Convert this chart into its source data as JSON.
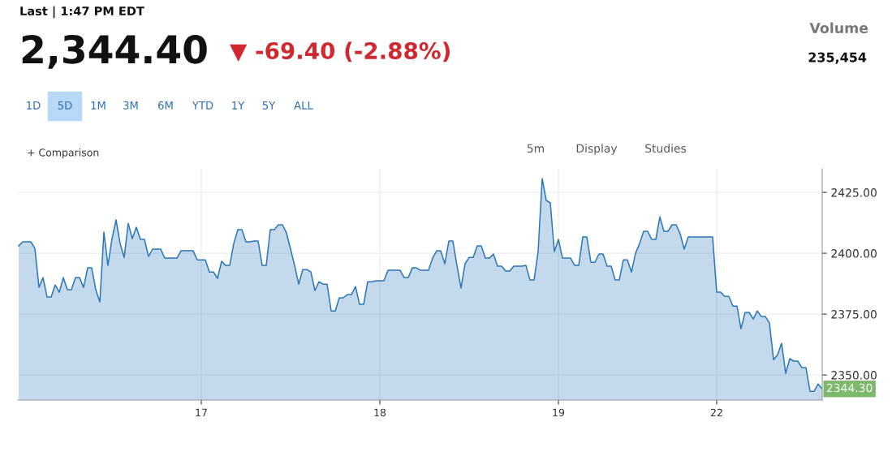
{
  "chart_data": {
    "type": "area",
    "title": "2,344.40",
    "subtitle": "▼ -69.40 (-2.88%)",
    "categories": [
      null,
      null,
      null,
      null,
      null,
      null,
      null,
      null,
      null,
      null,
      null,
      null,
      null,
      null,
      null,
      null,
      null,
      null,
      null,
      null,
      null,
      null,
      null,
      null,
      null,
      null,
      null,
      null,
      null,
      null,
      null,
      null,
      null,
      null,
      null,
      null,
      null,
      null,
      null,
      null,
      null,
      null,
      null,
      null,
      null,
      "17",
      null,
      null,
      null,
      null,
      null,
      null,
      null,
      null,
      null,
      null,
      null,
      null,
      null,
      null,
      null,
      null,
      null,
      null,
      null,
      null,
      null,
      null,
      null,
      null,
      null,
      null,
      null,
      null,
      null,
      null,
      null,
      null,
      null,
      null,
      null,
      null,
      null,
      null,
      null,
      null,
      null,
      null,
      null,
      "18",
      null,
      null,
      null,
      null,
      null,
      null,
      null,
      null,
      null,
      null,
      null,
      null,
      null,
      null,
      null,
      null,
      null,
      null,
      null,
      null,
      null,
      null,
      null,
      null,
      null,
      null,
      null,
      null,
      null,
      null,
      null,
      null,
      null,
      null,
      null,
      null,
      null,
      null,
      null,
      null,
      null,
      null,
      null,
      "19",
      null,
      null,
      null,
      null,
      null,
      null,
      null,
      null,
      null,
      null,
      null,
      null,
      null,
      null,
      null,
      null,
      null,
      null,
      null,
      null,
      null,
      null,
      null,
      null,
      null,
      null,
      null,
      null,
      null,
      null,
      null,
      null,
      null,
      null,
      null,
      null,
      null,
      null,
      "22",
      null,
      null,
      null,
      null,
      null,
      null,
      null,
      null,
      null,
      null,
      null,
      null,
      null,
      null,
      null,
      null,
      null,
      null,
      null,
      null,
      null,
      null,
      null,
      null,
      null,
      null
    ],
    "series": [
      {
        "color": "#2a77b8",
        "values": [
          2403,
          2404.7,
          2404.7,
          2404.7,
          2402,
          2386,
          2390,
          2382,
          2382,
          2387,
          2384,
          2390,
          2385,
          2385,
          2390,
          2390,
          2386,
          2394,
          2394,
          2385,
          2380,
          2408.7,
          2395,
          2406,
          2413.7,
          2404,
          2398.3,
          2412.3,
          2406,
          2410.7,
          2405.7,
          2405.7,
          2398.7,
          2401.7,
          2401.7,
          2401.7,
          2398,
          2398,
          2398,
          2398,
          2401,
          2401,
          2401,
          2401,
          2397.3,
          2397.3,
          2397.3,
          2392.3,
          2392.3,
          2389.7,
          2396.7,
          2395,
          2395,
          2404,
          2409.7,
          2409.7,
          2404.7,
          2404.7,
          2405,
          2405,
          2395,
          2395,
          2409.7,
          2409.7,
          2411.7,
          2411.7,
          2408.3,
          2401.7,
          2395,
          2387.3,
          2393.3,
          2393.3,
          2392.3,
          2384.7,
          2388.3,
          2387.3,
          2387.3,
          2376.3,
          2376.3,
          2381.7,
          2381.7,
          2383,
          2383,
          2386.3,
          2379,
          2379,
          2388.3,
          2388.3,
          2388.7,
          2388.7,
          2388.7,
          2393,
          2393,
          2393,
          2393,
          2390,
          2390,
          2394,
          2394,
          2393,
          2393,
          2393,
          2398,
          2401,
          2401,
          2395.7,
          2405,
          2405,
          2395,
          2385.7,
          2395.7,
          2398.3,
          2398.3,
          2403,
          2403,
          2398,
          2398,
          2399.7,
          2394.7,
          2394.7,
          2392.7,
          2392.7,
          2394.7,
          2394.7,
          2394.7,
          2395,
          2389,
          2389,
          2400.7,
          2430.7,
          2421.7,
          2420.7,
          2400.7,
          2405.7,
          2398,
          2398,
          2398,
          2395,
          2395,
          2406.7,
          2406.7,
          2396.3,
          2396.3,
          2399.7,
          2399.7,
          2394.7,
          2394.7,
          2389,
          2389,
          2397.3,
          2397.3,
          2392.3,
          2400,
          2404,
          2409,
          2409,
          2405.7,
          2405.7,
          2415,
          2409,
          2409,
          2411.7,
          2411.7,
          2408,
          2401.7,
          2406.7,
          2406.7,
          2406.7,
          2406.7,
          2406.7,
          2406.7,
          2406.7,
          2384,
          2384,
          2382.3,
          2382.3,
          2378.3,
          2378.3,
          2369,
          2375.7,
          2375.7,
          2373,
          2376.3,
          2374,
          2374,
          2371.3,
          2356.3,
          2358.3,
          2363,
          2350.7,
          2356.7,
          2355.7,
          2355.7,
          2353,
          2353,
          2343.3,
          2343.3,
          2346.3,
          2344.3
        ]
      }
    ],
    "ylim": [
      2339.7,
      2434.7
    ],
    "yticks": [
      {
        "value": 2350,
        "label": "2350.00"
      },
      {
        "value": 2375,
        "label": "2375.00"
      },
      {
        "value": 2400,
        "label": "2400.00"
      },
      {
        "value": 2425,
        "label": "2425.00"
      }
    ],
    "grid": true,
    "legend": false,
    "annotations": [
      "2344.30",
      "Last | 1:47 PM EDT",
      "Volume",
      "235,454",
      "1D",
      "5D",
      "1M",
      "3M",
      "6M",
      "YTD",
      "1Y",
      "5Y",
      "ALL",
      "+ Comparison",
      "5m",
      "Display",
      "Studies"
    ]
  }
}
